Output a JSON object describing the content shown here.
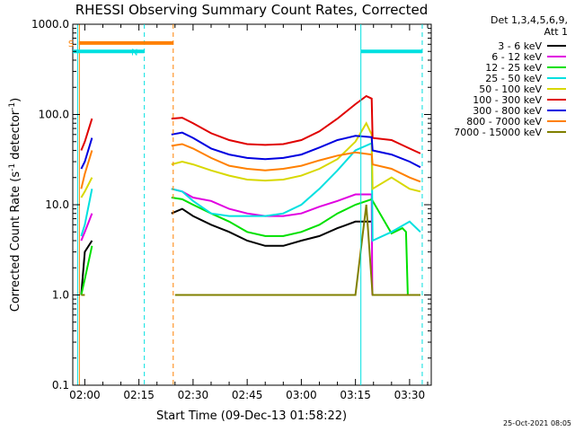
{
  "chart_data": {
    "type": "line",
    "title": "RHESSI Observing Summary Count Rates, Corrected",
    "xlabel": "Start Time (09-Dec-13 01:58:22)",
    "ylabel_main": "Corrected Count Rate (s",
    "ylabel_sup1": "-1",
    "ylabel_mid": " detector",
    "ylabel_sup2": "-1",
    "ylabel_end": ")",
    "yscale": "log",
    "xlim": [
      "01:56:40",
      "03:36:00"
    ],
    "ylim": [
      0.1,
      1000.0
    ],
    "x_tick_labels": [
      {
        "t": "02:00",
        "label": "02:00"
      },
      {
        "t": "02:15",
        "label": "02:15"
      },
      {
        "t": "02:30",
        "label": "02:30"
      },
      {
        "t": "02:45",
        "label": "02:45"
      },
      {
        "t": "03:00",
        "label": "03:00"
      },
      {
        "t": "03:15",
        "label": "03:15"
      },
      {
        "t": "03:30",
        "label": "03:30"
      }
    ],
    "y_tick_labels": [
      {
        "v": 0.1,
        "label": "0.1"
      },
      {
        "v": 1.0,
        "label": "1.0"
      },
      {
        "v": 10.0,
        "label": "10.0"
      },
      {
        "v": 100.0,
        "label": "100.0"
      },
      {
        "v": 1000.0,
        "label": "1000.0"
      }
    ],
    "legend_header": [
      "Det 1,3,4,5,6,9,",
      "Att 1"
    ],
    "legend_position": "right",
    "series": [
      {
        "name": "3 - 6 keV",
        "color": "#000000",
        "x": [
          "01:59:00",
          "02:00:00",
          "02:02:00",
          "02:24:00",
          "02:27:00",
          "02:30:00",
          "02:35:00",
          "02:40:00",
          "02:45:00",
          "02:50:00",
          "02:55:00",
          "03:00:00",
          "03:05:00",
          "03:10:00",
          "03:15:00",
          "03:19:30"
        ],
        "y": [
          1.0,
          3.0,
          4.0,
          8.0,
          9.0,
          7.5,
          6.0,
          5.0,
          4.0,
          3.5,
          3.5,
          4.0,
          4.5,
          5.5,
          6.5,
          6.5
        ]
      },
      {
        "name": "6 - 12 keV",
        "color": "#e000e0",
        "x": [
          "01:59:00",
          "02:00:00",
          "02:02:00",
          "02:24:00",
          "02:27:00",
          "02:30:00",
          "02:35:00",
          "02:40:00",
          "02:45:00",
          "02:50:00",
          "02:55:00",
          "03:00:00",
          "03:05:00",
          "03:10:00",
          "03:15:00",
          "03:19:30",
          "03:19:40"
        ],
        "y": [
          4.0,
          5.0,
          8.0,
          15.0,
          14.0,
          12.0,
          11.0,
          9.0,
          8.0,
          7.5,
          7.5,
          8.0,
          9.5,
          11.0,
          13.0,
          13.0,
          1.0
        ]
      },
      {
        "name": "12 - 25 keV",
        "color": "#00e000",
        "x": [
          "01:59:00",
          "02:00:00",
          "02:02:00",
          "02:24:00",
          "02:27:00",
          "02:30:00",
          "02:35:00",
          "02:40:00",
          "02:45:00",
          "02:50:00",
          "02:55:00",
          "03:00:00",
          "03:05:00",
          "03:10:00",
          "03:15:00",
          "03:19:30",
          "03:25:00",
          "03:28:00",
          "03:29:00",
          "03:29:30",
          "03:33:00"
        ],
        "y": [
          1.0,
          1.5,
          3.5,
          12.0,
          11.5,
          10.0,
          8.0,
          6.5,
          5.0,
          4.5,
          4.5,
          5.0,
          6.0,
          8.0,
          10.0,
          11.5,
          4.8,
          5.5,
          5.0,
          1.0,
          1.0
        ]
      },
      {
        "name": "25 - 50 keV",
        "color": "#00e0e0",
        "x": [
          "01:59:00",
          "02:00:00",
          "02:02:00",
          "02:24:00",
          "02:27:00",
          "02:30:00",
          "02:35:00",
          "02:40:00",
          "02:45:00",
          "02:50:00",
          "02:55:00",
          "03:00:00",
          "03:05:00",
          "03:10:00",
          "03:15:00",
          "03:19:30",
          "03:19:45",
          "03:25:00",
          "03:30:00",
          "03:33:00"
        ],
        "y": [
          4.5,
          6.0,
          15.0,
          15.0,
          14.0,
          11.0,
          8.0,
          7.5,
          7.5,
          7.5,
          8.0,
          10.0,
          15.0,
          24.0,
          40.0,
          48.0,
          4.0,
          5.0,
          6.5,
          5.0
        ]
      },
      {
        "name": "50 - 100 keV",
        "color": "#d8d800",
        "x": [
          "01:59:00",
          "02:00:00",
          "02:02:00",
          "02:24:00",
          "02:27:00",
          "02:30:00",
          "02:35:00",
          "02:40:00",
          "02:45:00",
          "02:50:00",
          "02:55:00",
          "03:00:00",
          "03:05:00",
          "03:10:00",
          "03:15:00",
          "03:18:00",
          "03:19:30",
          "03:19:45",
          "03:25:00",
          "03:30:00",
          "03:33:00"
        ],
        "y": [
          12.0,
          14.0,
          20.0,
          28.0,
          30.0,
          28.0,
          24.0,
          21.0,
          19.0,
          18.5,
          19.0,
          21.0,
          25.0,
          32.0,
          50.0,
          80.0,
          60.0,
          15.0,
          20.0,
          15.0,
          14.0
        ]
      },
      {
        "name": "100 - 300 keV",
        "color": "#e00000",
        "x": [
          "01:59:00",
          "02:00:00",
          "02:02:00",
          "02:24:00",
          "02:27:00",
          "02:30:00",
          "02:35:00",
          "02:40:00",
          "02:45:00",
          "02:50:00",
          "02:55:00",
          "03:00:00",
          "03:05:00",
          "03:10:00",
          "03:15:00",
          "03:18:00",
          "03:19:30",
          "03:19:45",
          "03:25:00",
          "03:30:00",
          "03:33:00"
        ],
        "y": [
          40.0,
          50.0,
          90.0,
          90.0,
          92.0,
          80.0,
          62.0,
          52.0,
          47.0,
          46.0,
          47.0,
          52.0,
          65.0,
          90.0,
          130.0,
          160.0,
          150.0,
          55.0,
          52.0,
          42.0,
          37.0
        ]
      },
      {
        "name": "300 - 800 keV",
        "color": "#0000e0",
        "x": [
          "01:59:00",
          "02:00:00",
          "02:02:00",
          "02:24:00",
          "02:27:00",
          "02:30:00",
          "02:35:00",
          "02:40:00",
          "02:45:00",
          "02:50:00",
          "02:55:00",
          "03:00:00",
          "03:05:00",
          "03:10:00",
          "03:15:00",
          "03:19:30",
          "03:19:45",
          "03:25:00",
          "03:30:00",
          "03:33:00"
        ],
        "y": [
          25.0,
          30.0,
          55.0,
          60.0,
          63.0,
          55.0,
          42.0,
          36.0,
          33.0,
          32.0,
          33.0,
          36.0,
          43.0,
          52.0,
          58.0,
          56.0,
          40.0,
          36.0,
          30.0,
          26.0
        ]
      },
      {
        "name": "800 - 7000 keV",
        "color": "#ff8000",
        "x": [
          "01:59:00",
          "02:00:00",
          "02:02:00",
          "02:24:00",
          "02:27:00",
          "02:30:00",
          "02:35:00",
          "02:40:00",
          "02:45:00",
          "02:50:00",
          "02:55:00",
          "03:00:00",
          "03:05:00",
          "03:10:00",
          "03:15:00",
          "03:19:30",
          "03:19:45",
          "03:25:00",
          "03:30:00",
          "03:33:00"
        ],
        "y": [
          15.0,
          22.0,
          40.0,
          45.0,
          47.0,
          42.0,
          33.0,
          27.0,
          25.0,
          24.0,
          25.0,
          27.0,
          31.0,
          35.0,
          38.0,
          36.0,
          28.0,
          25.0,
          20.0,
          18.0
        ]
      },
      {
        "name": "7000 - 15000 keV",
        "color": "#808000",
        "x": [
          "01:59:00",
          "02:00:00",
          "02:25:00",
          "02:30:00",
          "02:35:00",
          "02:40:00",
          "02:45:00",
          "02:50:00",
          "02:55:00",
          "03:00:00",
          "03:05:00",
          "03:10:00",
          "03:15:00",
          "03:18:00",
          "03:19:45",
          "03:30:00",
          "03:33:00"
        ],
        "y": [
          1.0,
          1.0,
          1.0,
          1.0,
          1.0,
          1.0,
          1.0,
          1.0,
          1.0,
          1.0,
          1.0,
          1.0,
          1.0,
          10.0,
          1.0,
          1.0,
          1.0
        ]
      }
    ],
    "status_bars": [
      {
        "label": "S",
        "color": "#ff8000",
        "level": 620,
        "x_start": "01:58:22",
        "x_end": "02:24:30"
      },
      {
        "label": "N",
        "color": "#00e0e0",
        "level": 500,
        "x_start": "01:56:40",
        "x_end": "02:16:30"
      },
      {
        "label": "",
        "color": "#00e0e0",
        "level": 500,
        "x_start": "03:16:30",
        "x_end": "03:33:30"
      }
    ],
    "vertical_markers": [
      {
        "t": "01:58:00",
        "color": "#00e0e0",
        "style": "solid"
      },
      {
        "t": "01:58:30",
        "color": "#ff8000",
        "style": "solid"
      },
      {
        "t": "02:16:30",
        "color": "#00e0e0",
        "style": "dashed"
      },
      {
        "t": "02:24:30",
        "color": "#ff8000",
        "style": "dashed"
      },
      {
        "t": "03:16:30",
        "color": "#00e0e0",
        "style": "solid"
      },
      {
        "t": "03:33:30",
        "color": "#00e0e0",
        "style": "dashed"
      }
    ],
    "footer_timestamp": "25-Oct-2021 08:05"
  }
}
